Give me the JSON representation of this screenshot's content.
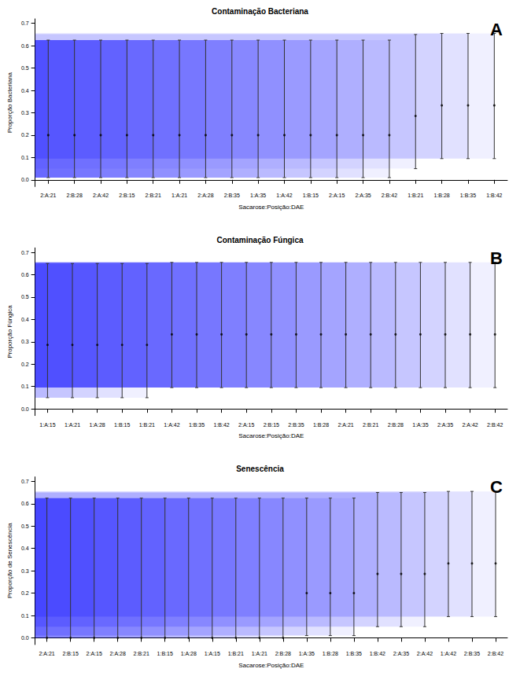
{
  "chart_data": [
    {
      "type": "scatter",
      "title": "Contaminação Bacteriana",
      "annotation": "A",
      "x_label": "Sacarose:Posição:DAE",
      "y_label": "Proporção Bacteriana",
      "categories": [
        "2:A:21",
        "2:B:28",
        "2:A:42",
        "2:B:15",
        "2:B:21",
        "1:A:21",
        "2:A:28",
        "2:B:35",
        "1:A:35",
        "1:A:42",
        "1:B:15",
        "2:A:15",
        "2:A:35",
        "2:B:42",
        "1:B:21",
        "1:B:28",
        "1:B:35",
        "1:B:42"
      ],
      "values": [
        0.2,
        0.2,
        0.2,
        0.2,
        0.2,
        0.2,
        0.2,
        0.2,
        0.2,
        0.2,
        0.2,
        0.2,
        0.2,
        0.2,
        0.286,
        0.333,
        0.333,
        0.333
      ],
      "lower": [
        0.01,
        0.01,
        0.01,
        0.01,
        0.01,
        0.01,
        0.01,
        0.01,
        0.01,
        0.01,
        0.01,
        0.01,
        0.01,
        0.01,
        0.05,
        0.095,
        0.095,
        0.095
      ],
      "upper": [
        0.625,
        0.625,
        0.625,
        0.625,
        0.625,
        0.625,
        0.625,
        0.625,
        0.625,
        0.625,
        0.625,
        0.625,
        0.625,
        0.625,
        0.65,
        0.655,
        0.655,
        0.655
      ],
      "color": "#0000ff",
      "ylim": [
        -0.03,
        0.72
      ],
      "yticks": [
        {
          "value": 0,
          "label": "0.0"
        },
        {
          "value": 0.1,
          "label": "0.1"
        },
        {
          "value": 0.2,
          "label": "0.2"
        },
        {
          "value": 0.3,
          "label": "0.3"
        },
        {
          "value": 0.4,
          "label": "0.4"
        },
        {
          "value": 0.5,
          "label": "0.5"
        },
        {
          "value": 0.6,
          "label": "0.6"
        },
        {
          "value": 0.7,
          "label": "0.7"
        }
      ],
      "grid": false
    },
    {
      "type": "scatter",
      "title": "Contaminação Fúngica",
      "annotation": "B",
      "x_label": "Sacarose:Posição:DAE",
      "y_label": "Proporção Fúngica",
      "categories": [
        "1:A:15",
        "1:A:21",
        "1:A:28",
        "1:B:15",
        "1:B:21",
        "1:A:42",
        "1:B:35",
        "1:B:42",
        "2:A:15",
        "2:B:15",
        "2:B:35",
        "1:B:28",
        "2:A:21",
        "2:B:21",
        "2:B:28",
        "1:A:35",
        "2:A:35",
        "2:A:42",
        "2:B:42"
      ],
      "values": [
        0.286,
        0.286,
        0.286,
        0.286,
        0.286,
        0.333,
        0.333,
        0.333,
        0.333,
        0.333,
        0.333,
        0.333,
        0.333,
        0.333,
        0.333,
        0.333,
        0.333,
        0.333,
        0.333
      ],
      "lower": [
        0.05,
        0.05,
        0.05,
        0.05,
        0.05,
        0.095,
        0.095,
        0.095,
        0.095,
        0.095,
        0.095,
        0.095,
        0.095,
        0.095,
        0.095,
        0.095,
        0.095,
        0.095,
        0.095
      ],
      "upper": [
        0.65,
        0.65,
        0.65,
        0.65,
        0.65,
        0.655,
        0.655,
        0.655,
        0.655,
        0.655,
        0.655,
        0.655,
        0.655,
        0.655,
        0.655,
        0.655,
        0.655,
        0.655,
        0.655
      ],
      "color": "#0000ff",
      "ylim": [
        -0.03,
        0.72
      ],
      "yticks": [
        {
          "value": 0,
          "label": "0.0"
        },
        {
          "value": 0.1,
          "label": "0.1"
        },
        {
          "value": 0.2,
          "label": "0.2"
        },
        {
          "value": 0.3,
          "label": "0.3"
        },
        {
          "value": 0.4,
          "label": "0.4"
        },
        {
          "value": 0.5,
          "label": "0.5"
        },
        {
          "value": 0.6,
          "label": "0.6"
        },
        {
          "value": 0.7,
          "label": "0.7"
        }
      ],
      "grid": false
    },
    {
      "type": "scatter",
      "title": "Senescência",
      "annotation": "C",
      "x_label": "Sacarose:Posição:DAE",
      "y_label": "Proporção de Senescência",
      "categories": [
        "2:A:21",
        "2:B:15",
        "2:A:15",
        "2:A:28",
        "2:B:21",
        "1:B:15",
        "1:A:28",
        "1:A:15",
        "1:B:21",
        "1:A:21",
        "2:B:28",
        "1:A:35",
        "1:B:28",
        "1:B:35",
        "1:B:42",
        "2:A:35",
        "2:A:42",
        "1:A:42",
        "2:B:35",
        "2:B:42"
      ],
      "values": [
        0,
        0,
        0,
        0,
        0,
        0,
        0,
        0,
        0,
        0,
        0,
        0.2,
        0.2,
        0.2,
        0.286,
        0.286,
        0.286,
        0.333,
        0.333,
        0.333
      ],
      "lower": [
        0,
        0,
        0,
        0,
        0,
        0,
        0,
        0,
        0,
        0,
        0,
        0.01,
        0.01,
        0.01,
        0.05,
        0.05,
        0.05,
        0.095,
        0.095,
        0.095
      ],
      "upper": [
        0.625,
        0.625,
        0.625,
        0.625,
        0.625,
        0.625,
        0.625,
        0.625,
        0.625,
        0.625,
        0.625,
        0.625,
        0.625,
        0.625,
        0.65,
        0.65,
        0.65,
        0.655,
        0.655,
        0.655
      ],
      "color": "#0000ff",
      "ylim": [
        -0.03,
        0.72
      ],
      "yticks": [
        {
          "value": 0,
          "label": "0.0"
        },
        {
          "value": 0.1,
          "label": "0.1"
        },
        {
          "value": 0.2,
          "label": "0.2"
        },
        {
          "value": 0.3,
          "label": "0.3"
        },
        {
          "value": 0.4,
          "label": "0.4"
        },
        {
          "value": 0.5,
          "label": "0.5"
        },
        {
          "value": 0.6,
          "label": "0.6"
        },
        {
          "value": 0.7,
          "label": "0.7"
        }
      ],
      "grid": false
    }
  ]
}
